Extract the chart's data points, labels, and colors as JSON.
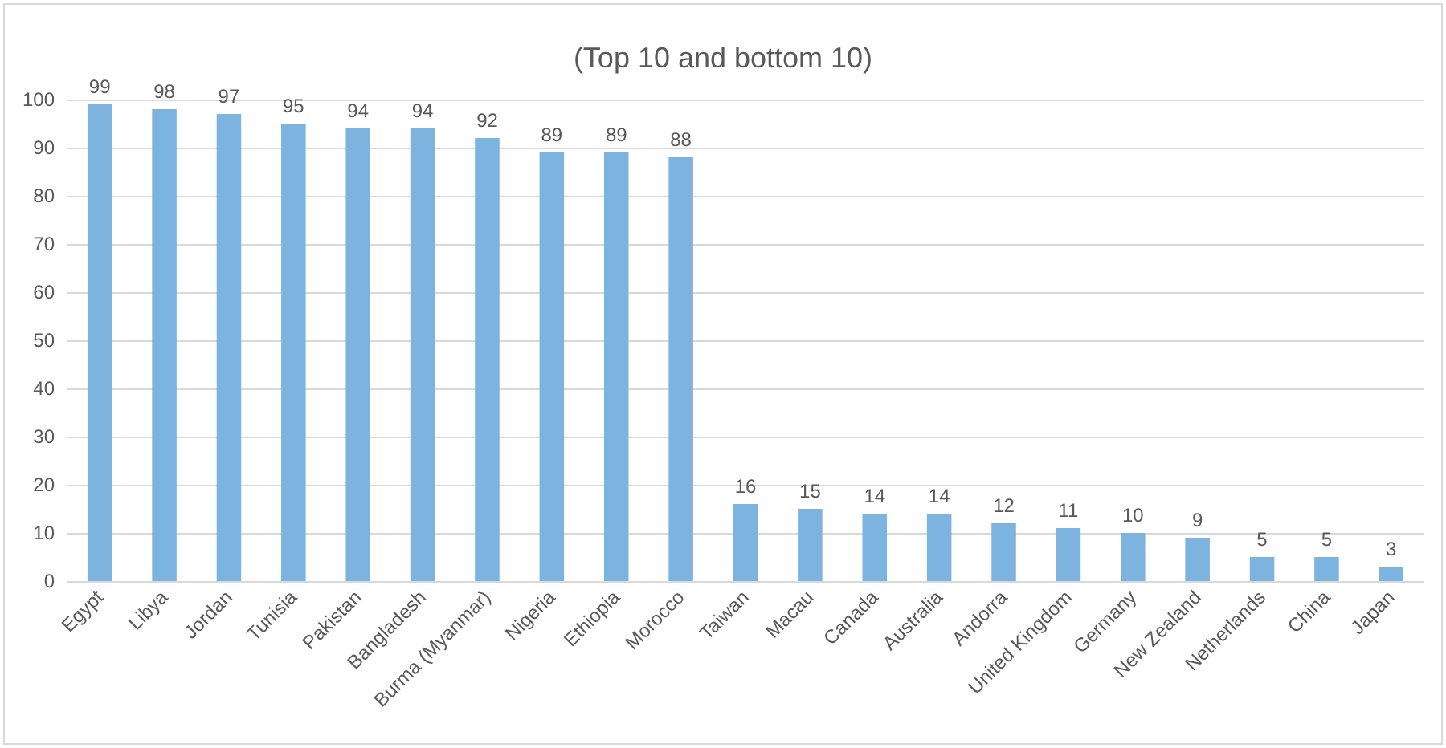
{
  "chart_data": {
    "type": "bar",
    "title": "(Top 10 and bottom 10)",
    "categories": [
      "Egypt",
      "Libya",
      "Jordan",
      "Tunisia",
      "Pakistan",
      "Bangladesh",
      "Burma (Myanmar)",
      "Nigeria",
      "Ethiopia",
      "Morocco",
      "Taiwan",
      "Macau",
      "Canada",
      "Australia",
      "Andorra",
      "United Kingdom",
      "Germany",
      "New Zealand",
      "Netherlands",
      "China",
      "Japan"
    ],
    "values": [
      99,
      98,
      97,
      95,
      94,
      94,
      92,
      89,
      89,
      88,
      16,
      15,
      14,
      14,
      12,
      11,
      10,
      9,
      5,
      5,
      3
    ],
    "color": "#7cb4df",
    "ylim": [
      0,
      100
    ],
    "yticks": [
      0,
      10,
      20,
      30,
      40,
      50,
      60,
      70,
      80,
      90,
      100
    ],
    "grid": "y",
    "data_labels": true
  }
}
